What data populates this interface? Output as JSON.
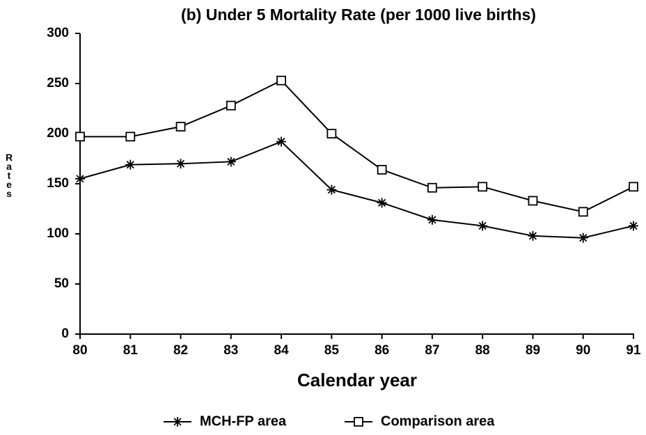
{
  "chart_data": {
    "type": "line",
    "title": "(b) Under 5 Mortality Rate (per 1000 live births)",
    "x_label": "Calendar year",
    "y_label": "Rates",
    "x": [
      80,
      81,
      82,
      83,
      84,
      85,
      86,
      87,
      88,
      89,
      90,
      91
    ],
    "xlim": [
      80,
      91
    ],
    "xticks": [
      80,
      81,
      82,
      83,
      84,
      85,
      86,
      87,
      88,
      89,
      90,
      91
    ],
    "ylim": [
      0,
      300
    ],
    "yticks": [
      0,
      50,
      100,
      150,
      200,
      250,
      300
    ],
    "grid": false,
    "legend": "bottom",
    "series": [
      {
        "name": "MCH-FP area",
        "color": "#000000",
        "marker": "star",
        "values": [
          155,
          169,
          170,
          172,
          192,
          144,
          131,
          114,
          108,
          98,
          96,
          108
        ]
      },
      {
        "name": "Comparison area",
        "color": "#000000",
        "marker": "square",
        "values": [
          197,
          197,
          207,
          228,
          253,
          200,
          164,
          146,
          147,
          133,
          122,
          147
        ]
      }
    ]
  }
}
